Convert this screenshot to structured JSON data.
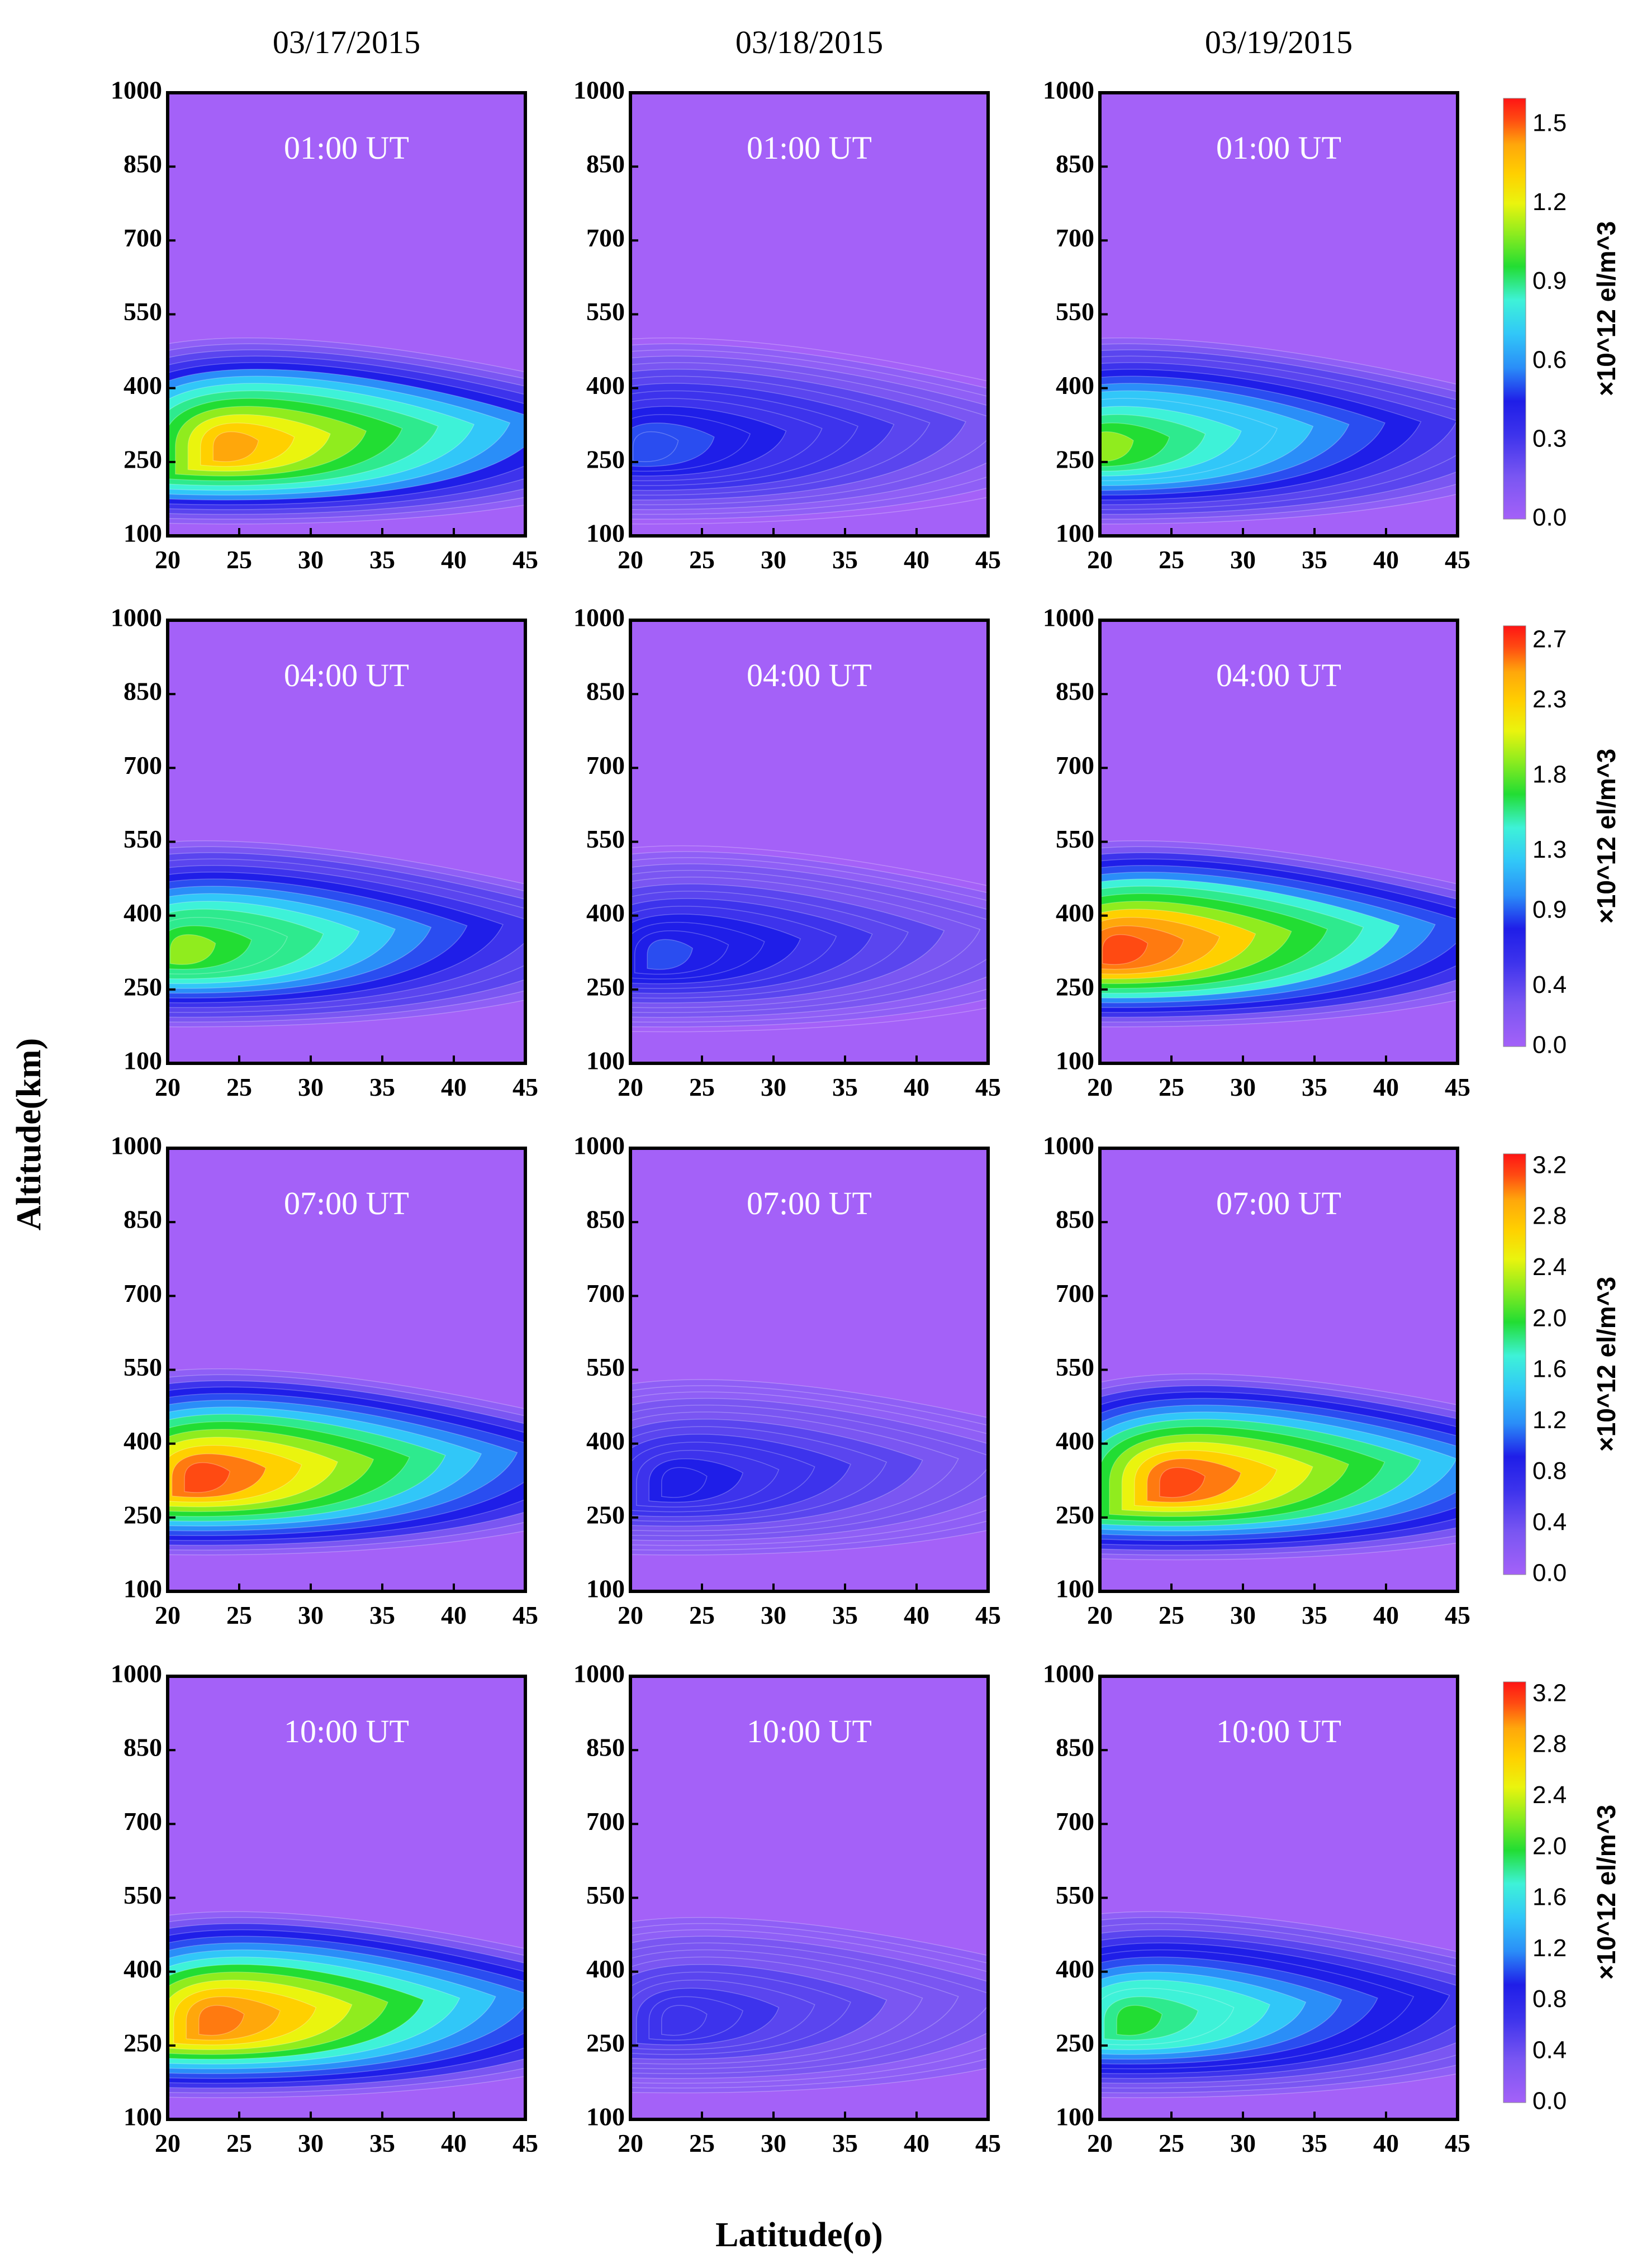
{
  "chart_data": {
    "type": "heatmap",
    "description_units": "electron density, x10^12 el/m^3",
    "xlabel": "Latitude(o)",
    "ylabel": "Altitude(km)",
    "x_ticks": [
      "20",
      "25",
      "30",
      "35",
      "40",
      "45"
    ],
    "y_ticks": [
      "1000",
      "850",
      "700",
      "550",
      "400",
      "250",
      "100"
    ],
    "xlim": [
      20,
      45
    ],
    "ylim": [
      100,
      1000
    ],
    "columns": [
      "03/17/2015",
      "03/18/2015",
      "03/19/2015"
    ],
    "rows": [
      {
        "time": "01:00  UT",
        "colorbar": {
          "ticks": [
            "1.5",
            "1.2",
            "0.9",
            "0.6",
            "0.3",
            "0.0"
          ],
          "max": 1.6,
          "label": "×10^12 el/m^3"
        },
        "panels": [
          {
            "date": "03/17/2015",
            "peak_value": 1.35,
            "peak_lat": 24,
            "peak_alt": 280
          },
          {
            "date": "03/18/2015",
            "peak_value": 0.55,
            "peak_lat": 21,
            "peak_alt": 280
          },
          {
            "date": "03/19/2015",
            "peak_value": 1.05,
            "peak_lat": 20,
            "peak_alt": 280
          }
        ]
      },
      {
        "time": "04:00  UT",
        "colorbar": {
          "ticks": [
            "2.7",
            "2.3",
            "1.8",
            "1.3",
            "0.9",
            "0.4",
            "0.0"
          ],
          "max": 2.8,
          "label": "×10^12 el/m^3"
        },
        "panels": [
          {
            "date": "03/17/2015",
            "peak_value": 1.9,
            "peak_lat": 21,
            "peak_alt": 330
          },
          {
            "date": "03/18/2015",
            "peak_value": 0.9,
            "peak_lat": 22,
            "peak_alt": 320
          },
          {
            "date": "03/19/2015",
            "peak_value": 2.7,
            "peak_lat": 21,
            "peak_alt": 330
          }
        ]
      },
      {
        "time": "07:00  UT",
        "colorbar": {
          "ticks": [
            "3.2",
            "2.8",
            "2.4",
            "2.0",
            "1.6",
            "1.2",
            "0.8",
            "0.4",
            "0.0"
          ],
          "max": 3.3,
          "label": "×10^12 el/m^3"
        },
        "panels": [
          {
            "date": "03/17/2015",
            "peak_value": 3.1,
            "peak_lat": 22,
            "peak_alt": 330
          },
          {
            "date": "03/18/2015",
            "peak_value": 0.9,
            "peak_lat": 23,
            "peak_alt": 320
          },
          {
            "date": "03/19/2015",
            "peak_value": 3.1,
            "peak_lat": 25,
            "peak_alt": 320
          }
        ]
      },
      {
        "time": "10:00  UT",
        "colorbar": {
          "ticks": [
            "3.2",
            "2.8",
            "2.4",
            "2.0",
            "1.6",
            "1.2",
            "0.8",
            "0.4",
            "0.0"
          ],
          "max": 3.3,
          "label": "×10^12 el/m^3"
        },
        "panels": [
          {
            "date": "03/17/2015",
            "peak_value": 3.0,
            "peak_lat": 23,
            "peak_alt": 300
          },
          {
            "date": "03/18/2015",
            "peak_value": 0.8,
            "peak_lat": 23,
            "peak_alt": 300
          },
          {
            "date": "03/19/2015",
            "peak_value": 2.0,
            "peak_lat": 22,
            "peak_alt": 300
          }
        ]
      }
    ]
  },
  "colors": {
    "background": "#a461f8",
    "scale": [
      "#a461f8",
      "#8f5ff6",
      "#7a56f2",
      "#5a45ef",
      "#3d33ec",
      "#1f1ee8",
      "#2a4df0",
      "#2a8ef8",
      "#31c7f8",
      "#3ef2d8",
      "#2eea8e",
      "#22dd33",
      "#90ec1e",
      "#eaf40e",
      "#ffd000",
      "#ffa70b",
      "#ff7a10",
      "#ff4a12",
      "#ff1414"
    ]
  }
}
